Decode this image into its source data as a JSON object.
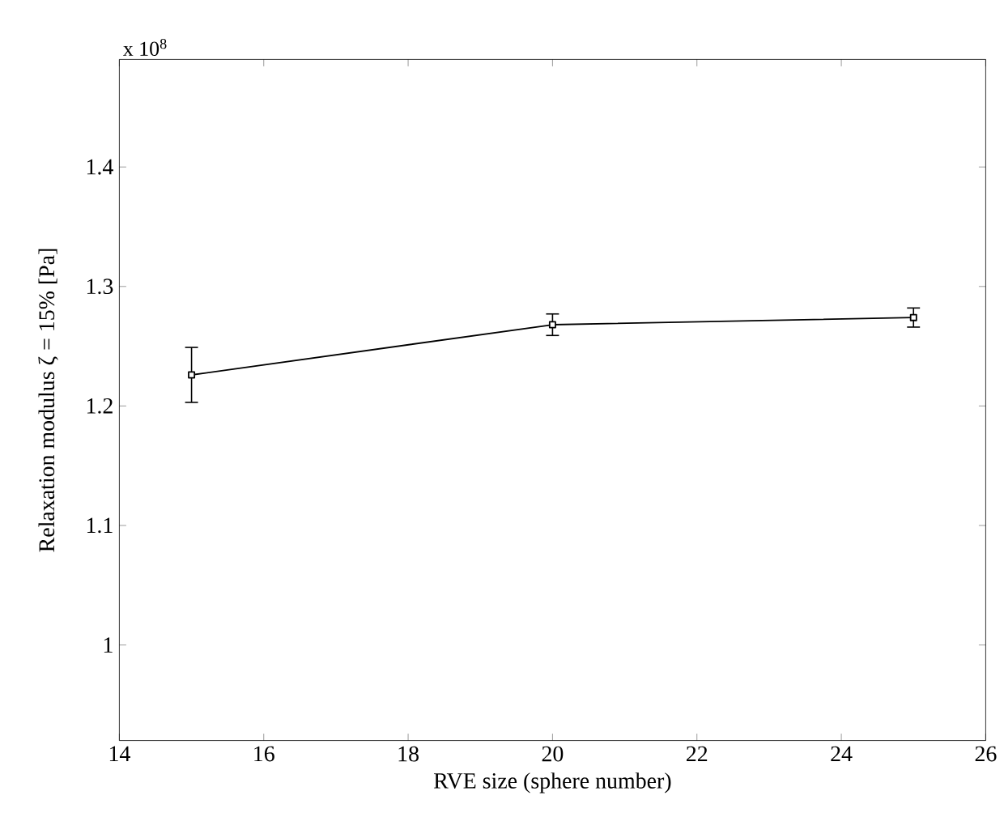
{
  "chart_data": {
    "type": "line",
    "xlabel": "RVE size (sphere number)",
    "ylabel": "Relaxation modulus ζ = 15% [Pa]",
    "annotations": [
      "x 10$^{8}$"
    ],
    "x": [
      15,
      20,
      25
    ],
    "series": [
      {
        "color": "#000000",
        "values": [
          1.226,
          1.268,
          1.274
        ],
        "errors": [
          0.023,
          0.009,
          0.008
        ]
      }
    ],
    "xlim": [
      14,
      26
    ],
    "xticks": [
      14,
      16,
      18,
      20,
      22,
      24,
      26
    ],
    "ylim": [
      0.92,
      1.49
    ],
    "yticks": [
      {
        "value": 1.0,
        "label": "1"
      },
      1.1,
      1.2,
      1.3,
      1.4
    ],
    "marker": "square",
    "line_style": "solid",
    "grid": false
  }
}
